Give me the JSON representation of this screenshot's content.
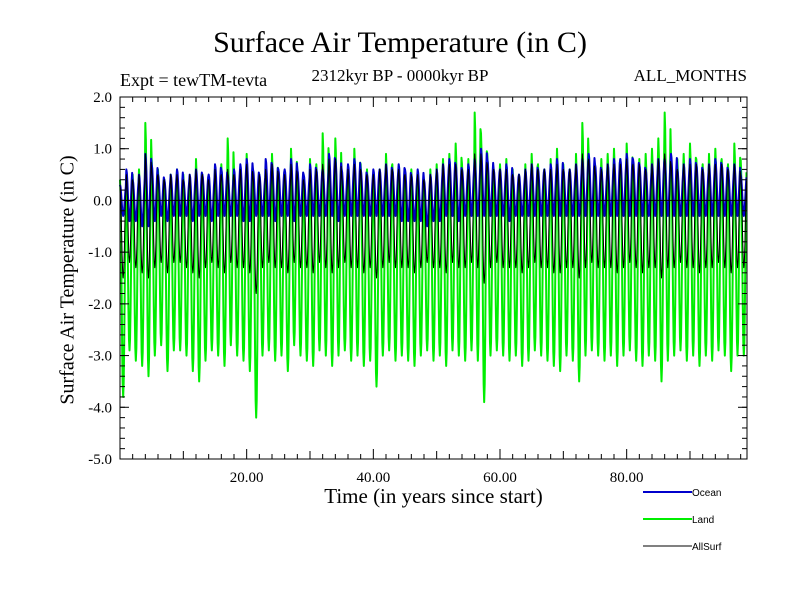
{
  "chart_data": {
    "type": "line",
    "title": "Surface Air Temperature (in C)",
    "subtitle_left": "Expt = tewTM-tevta",
    "subtitle_center": "2312kyr BP - 0000kyr BP",
    "subtitle_right": "ALL_MONTHS",
    "xlabel": "Time (in years since start)",
    "ylabel": "Surface Air Temperature (in C)",
    "xlim": [
      0,
      99
    ],
    "ylim": [
      -5.0,
      2.0
    ],
    "x_ticks": [
      20,
      40,
      60,
      80
    ],
    "x_tick_labels": [
      "20.00",
      "40.00",
      "60.00",
      "80.00"
    ],
    "y_ticks": [
      2.0,
      1.0,
      0.0,
      -1.0,
      -2.0,
      -3.0,
      -4.0,
      -5.0
    ],
    "y_tick_labels": [
      "2.0",
      "1.0",
      "0.0",
      "-1.0",
      "-2.0",
      "-3.0",
      "-4.0",
      "-5.0"
    ],
    "samples_per_year": 12,
    "series": [
      {
        "name": "Ocean",
        "color": "#0000cc",
        "annual_max": [
          0.3,
          0.6,
          0.4,
          0.5,
          0.9,
          0.7,
          0.5,
          0.4,
          0.5,
          0.6,
          0.4,
          0.5,
          0.6,
          0.5,
          0.5,
          0.7,
          0.6,
          0.5,
          0.6,
          0.7,
          0.8,
          0.6,
          0.5,
          0.8,
          0.7,
          0.6,
          0.6,
          0.8,
          0.6,
          0.5,
          0.7,
          0.6,
          0.6,
          0.9,
          0.8,
          0.6,
          0.7,
          0.8,
          0.6,
          0.5,
          0.6,
          0.6,
          0.7,
          0.6,
          0.7,
          0.6,
          0.5,
          0.6,
          0.4,
          0.5,
          0.6,
          0.7,
          0.8,
          0.7,
          0.6,
          0.7,
          0.8,
          1.0,
          0.8,
          0.6,
          0.6,
          0.7,
          0.5,
          0.5,
          0.6,
          0.7,
          0.6,
          0.6,
          0.7,
          0.8,
          0.6,
          0.6,
          0.7,
          0.8,
          0.9,
          0.7,
          0.6,
          0.7,
          0.8,
          0.8,
          0.9,
          0.8,
          0.7,
          0.6,
          0.7,
          0.8,
          0.8,
          0.9,
          0.6,
          0.7,
          0.8,
          0.7,
          0.6,
          0.7,
          0.8,
          0.7,
          0.6,
          0.7,
          0.5
        ],
        "annual_min": [
          -0.3,
          -0.4,
          -0.4,
          -0.5,
          -0.5,
          -0.4,
          -0.3,
          -0.4,
          -0.3,
          -0.3,
          -0.3,
          -0.4,
          -0.3,
          -0.3,
          -0.4,
          -0.3,
          -0.3,
          -0.3,
          -0.3,
          -0.4,
          -0.4,
          -0.3,
          -0.3,
          -0.3,
          -0.4,
          -0.3,
          -0.3,
          -0.4,
          -0.3,
          -0.3,
          -0.3,
          -0.3,
          -0.3,
          -0.3,
          -0.4,
          -0.3,
          -0.3,
          -0.3,
          -0.3,
          -0.3,
          -0.3,
          -0.3,
          -0.3,
          -0.3,
          -0.4,
          -0.4,
          -0.4,
          -0.4,
          -0.5,
          -0.4,
          -0.4,
          -0.3,
          -0.3,
          -0.4,
          -0.3,
          -0.3,
          -0.3,
          -0.3,
          -0.3,
          -0.3,
          -0.3,
          -0.4,
          -0.3,
          -0.3,
          -0.3,
          -0.3,
          -0.3,
          -0.3,
          -0.3,
          -0.3,
          -0.3,
          -0.3,
          -0.3,
          -0.3,
          -0.3,
          -0.3,
          -0.3,
          -0.3,
          -0.3,
          -0.3,
          -0.3,
          -0.3,
          -0.3,
          -0.3,
          -0.3,
          -0.3,
          -0.3,
          -0.3,
          -0.3,
          -0.3,
          -0.3,
          -0.3,
          -0.3,
          -0.3,
          -0.3,
          -0.3,
          -0.3,
          -0.3,
          -0.3
        ]
      },
      {
        "name": "Land",
        "color": "#00ee00",
        "annual_max": [
          0.4,
          0.3,
          0.5,
          0.6,
          1.5,
          0.8,
          0.6,
          0.4,
          0.5,
          0.6,
          0.5,
          0.4,
          0.8,
          0.5,
          0.4,
          0.6,
          0.7,
          1.2,
          0.6,
          0.5,
          0.9,
          0.6,
          0.5,
          0.6,
          0.9,
          0.6,
          0.5,
          1.0,
          0.6,
          0.4,
          0.8,
          0.7,
          1.3,
          0.8,
          1.2,
          0.5,
          0.6,
          1.0,
          0.7,
          0.6,
          0.5,
          0.6,
          0.9,
          0.7,
          0.6,
          0.5,
          0.6,
          0.5,
          0.4,
          0.6,
          0.7,
          0.8,
          0.9,
          1.1,
          0.7,
          0.8,
          1.7,
          1.3,
          0.9,
          0.6,
          0.7,
          0.8,
          0.6,
          0.5,
          0.7,
          0.9,
          0.7,
          0.6,
          0.8,
          1.0,
          0.7,
          0.6,
          0.9,
          1.5,
          0.9,
          0.7,
          0.8,
          0.9,
          1.0,
          0.8,
          1.1,
          0.7,
          0.8,
          0.9,
          1.0,
          1.2,
          1.7,
          0.9,
          0.8,
          0.9,
          1.1,
          0.8,
          0.7,
          0.9,
          1.0,
          0.8,
          0.7,
          1.1,
          0.8
        ],
        "annual_min": [
          -3.8,
          -2.9,
          -3.1,
          -3.2,
          -3.4,
          -3.0,
          -2.8,
          -3.3,
          -2.9,
          -2.9,
          -3.0,
          -3.3,
          -3.5,
          -3.1,
          -2.9,
          -3.0,
          -3.2,
          -2.8,
          -3.0,
          -3.1,
          -3.3,
          -4.2,
          -3.0,
          -2.9,
          -3.1,
          -3.0,
          -3.3,
          -2.8,
          -3.0,
          -3.1,
          -3.2,
          -2.9,
          -3.0,
          -3.2,
          -3.0,
          -2.9,
          -3.1,
          -3.0,
          -3.2,
          -3.1,
          -3.6,
          -3.0,
          -2.9,
          -3.1,
          -3.0,
          -3.1,
          -3.2,
          -3.0,
          -2.9,
          -3.1,
          -3.0,
          -3.2,
          -2.9,
          -3.0,
          -3.1,
          -2.9,
          -3.1,
          -3.9,
          -3.0,
          -2.9,
          -3.0,
          -3.1,
          -3.0,
          -3.2,
          -3.1,
          -2.9,
          -3.0,
          -3.1,
          -3.2,
          -3.3,
          -3.0,
          -3.1,
          -3.5,
          -3.0,
          -2.9,
          -3.0,
          -3.1,
          -3.0,
          -3.2,
          -3.0,
          -2.9,
          -3.1,
          -3.2,
          -3.0,
          -3.1,
          -3.5,
          -3.1,
          -3.0,
          -2.9,
          -3.1,
          -3.0,
          -3.2,
          -3.0,
          -3.1,
          -2.9,
          -3.0,
          -3.3,
          -3.0,
          -3.0
        ]
      },
      {
        "name": "AllSurf",
        "color": "#000000",
        "annual_max": [
          0.3,
          0.5,
          0.4,
          0.5,
          0.9,
          0.6,
          0.5,
          0.4,
          0.5,
          0.5,
          0.4,
          0.5,
          0.6,
          0.5,
          0.4,
          0.6,
          0.5,
          0.6,
          0.5,
          0.6,
          0.7,
          0.5,
          0.5,
          0.6,
          0.7,
          0.5,
          0.5,
          0.7,
          0.5,
          0.4,
          0.6,
          0.6,
          0.7,
          0.8,
          0.8,
          0.5,
          0.6,
          0.7,
          0.6,
          0.5,
          0.5,
          0.6,
          0.7,
          0.6,
          0.6,
          0.5,
          0.5,
          0.5,
          0.4,
          0.5,
          0.6,
          0.7,
          0.7,
          0.7,
          0.6,
          0.6,
          0.9,
          0.9,
          0.7,
          0.6,
          0.6,
          0.6,
          0.5,
          0.5,
          0.6,
          0.7,
          0.6,
          0.6,
          0.6,
          0.7,
          0.6,
          0.6,
          0.7,
          0.9,
          0.8,
          0.6,
          0.6,
          0.7,
          0.7,
          0.7,
          0.8,
          0.7,
          0.7,
          0.6,
          0.7,
          0.8,
          0.9,
          0.7,
          0.6,
          0.7,
          0.7,
          0.7,
          0.6,
          0.7,
          0.7,
          0.7,
          0.6,
          0.7,
          0.5
        ],
        "annual_min": [
          -1.5,
          -1.2,
          -1.3,
          -1.4,
          -1.5,
          -1.3,
          -1.2,
          -1.4,
          -1.2,
          -1.2,
          -1.3,
          -1.4,
          -1.5,
          -1.3,
          -1.2,
          -1.3,
          -1.4,
          -1.2,
          -1.3,
          -1.3,
          -1.4,
          -1.8,
          -1.3,
          -1.2,
          -1.3,
          -1.3,
          -1.4,
          -1.2,
          -1.3,
          -1.3,
          -1.4,
          -1.2,
          -1.3,
          -1.4,
          -1.3,
          -1.2,
          -1.3,
          -1.3,
          -1.4,
          -1.3,
          -1.5,
          -1.3,
          -1.2,
          -1.3,
          -1.3,
          -1.3,
          -1.4,
          -1.3,
          -1.2,
          -1.3,
          -1.3,
          -1.4,
          -1.2,
          -1.3,
          -1.3,
          -1.2,
          -1.3,
          -1.6,
          -1.3,
          -1.2,
          -1.3,
          -1.3,
          -1.3,
          -1.4,
          -1.3,
          -1.2,
          -1.3,
          -1.3,
          -1.4,
          -1.4,
          -1.3,
          -1.3,
          -1.5,
          -1.3,
          -1.2,
          -1.3,
          -1.3,
          -1.3,
          -1.4,
          -1.3,
          -1.2,
          -1.3,
          -1.4,
          -1.3,
          -1.3,
          -1.5,
          -1.3,
          -1.3,
          -1.2,
          -1.3,
          -1.3,
          -1.4,
          -1.3,
          -1.3,
          -1.2,
          -1.3,
          -1.4,
          -1.3,
          -1.3
        ]
      }
    ],
    "legend": [
      "Ocean",
      "Land",
      "AllSurf"
    ],
    "legend_position": "bottom-right, below plot"
  }
}
